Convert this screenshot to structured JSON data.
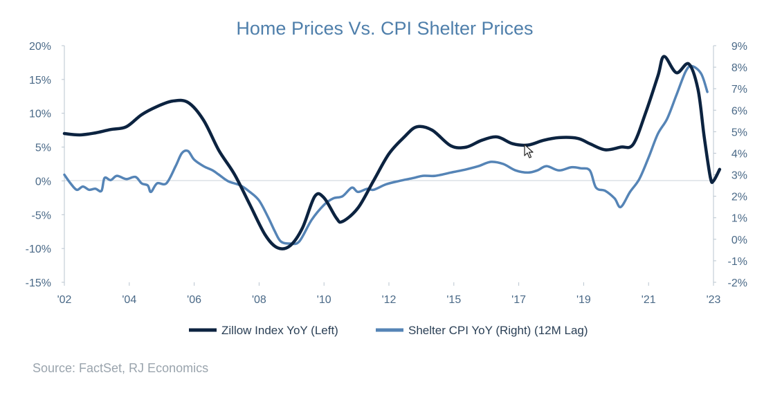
{
  "chart_data": {
    "type": "line",
    "title": "Home Prices Vs. CPI Shelter Prices",
    "source": "Source: FactSet, RJ Economics",
    "x_ticks": [
      "'02",
      "'04",
      "'06",
      "'08",
      "'10",
      "'12",
      "'15",
      "'17",
      "'19",
      "'21",
      "'23"
    ],
    "x_range": [
      2002.0,
      2023.0
    ],
    "y_left": {
      "ticks": [
        "20%",
        "15%",
        "10%",
        "5%",
        "0%",
        "-5%",
        "-10%",
        "-15%"
      ],
      "min": -15,
      "max": 20
    },
    "y_right": {
      "ticks": [
        "9%",
        "8%",
        "7%",
        "6%",
        "5%",
        "4%",
        "3%",
        "2%",
        "1%",
        "0%",
        "-1%",
        "-2%"
      ],
      "min": -2,
      "max": 9
    },
    "grid": false,
    "legend_position": "bottom",
    "series": [
      {
        "name": "Zillow Index YoY (Left)",
        "axis": "left",
        "color": "#0c2340",
        "points": [
          [
            2002.0,
            7.0
          ],
          [
            2002.5,
            6.8
          ],
          [
            2003.0,
            7.1
          ],
          [
            2003.5,
            7.6
          ],
          [
            2004.0,
            8.0
          ],
          [
            2004.5,
            9.8
          ],
          [
            2005.0,
            11.0
          ],
          [
            2005.5,
            11.8
          ],
          [
            2006.0,
            11.6
          ],
          [
            2006.5,
            9.0
          ],
          [
            2007.0,
            4.5
          ],
          [
            2007.5,
            1.0
          ],
          [
            2008.0,
            -3.5
          ],
          [
            2008.5,
            -8.0
          ],
          [
            2008.9,
            -9.9
          ],
          [
            2009.3,
            -9.6
          ],
          [
            2009.7,
            -7.0
          ],
          [
            2010.1,
            -2.3
          ],
          [
            2010.4,
            -2.5
          ],
          [
            2010.8,
            -5.5
          ],
          [
            2011.0,
            -6.0
          ],
          [
            2011.5,
            -4.0
          ],
          [
            2012.0,
            0.0
          ],
          [
            2012.5,
            4.0
          ],
          [
            2013.0,
            6.5
          ],
          [
            2013.4,
            8.0
          ],
          [
            2013.9,
            7.5
          ],
          [
            2014.5,
            5.2
          ],
          [
            2015.0,
            5.0
          ],
          [
            2015.5,
            6.0
          ],
          [
            2016.0,
            6.5
          ],
          [
            2016.5,
            5.5
          ],
          [
            2017.0,
            5.3
          ],
          [
            2017.5,
            6.0
          ],
          [
            2018.0,
            6.4
          ],
          [
            2018.6,
            6.3
          ],
          [
            2019.0,
            5.5
          ],
          [
            2019.5,
            4.6
          ],
          [
            2020.0,
            5.0
          ],
          [
            2020.4,
            5.4
          ],
          [
            2020.8,
            10.0
          ],
          [
            2021.2,
            15.5
          ],
          [
            2021.4,
            18.4
          ],
          [
            2021.8,
            16.0
          ],
          [
            2022.2,
            17.3
          ],
          [
            2022.5,
            13.5
          ],
          [
            2022.7,
            6.5
          ],
          [
            2022.9,
            0.5
          ],
          [
            2023.0,
            0.0
          ],
          [
            2023.2,
            1.7
          ]
        ]
      },
      {
        "name": "Shelter CPI YoY (Right) (12M Lag)",
        "axis": "right",
        "color": "#5584b6",
        "points": [
          [
            2002.0,
            3.0
          ],
          [
            2002.2,
            2.6
          ],
          [
            2002.4,
            2.3
          ],
          [
            2002.6,
            2.45
          ],
          [
            2002.8,
            2.3
          ],
          [
            2003.0,
            2.35
          ],
          [
            2003.2,
            2.25
          ],
          [
            2003.3,
            2.85
          ],
          [
            2003.5,
            2.75
          ],
          [
            2003.7,
            2.95
          ],
          [
            2004.0,
            2.8
          ],
          [
            2004.3,
            2.9
          ],
          [
            2004.5,
            2.6
          ],
          [
            2004.7,
            2.5
          ],
          [
            2004.8,
            2.2
          ],
          [
            2005.0,
            2.6
          ],
          [
            2005.3,
            2.6
          ],
          [
            2005.6,
            3.4
          ],
          [
            2005.8,
            4.0
          ],
          [
            2006.0,
            4.1
          ],
          [
            2006.2,
            3.7
          ],
          [
            2006.5,
            3.4
          ],
          [
            2006.8,
            3.2
          ],
          [
            2007.0,
            3.0
          ],
          [
            2007.3,
            2.7
          ],
          [
            2007.7,
            2.5
          ],
          [
            2008.0,
            2.2
          ],
          [
            2008.3,
            1.8
          ],
          [
            2008.6,
            1.0
          ],
          [
            2008.8,
            0.4
          ],
          [
            2009.0,
            -0.1
          ],
          [
            2009.3,
            -0.2
          ],
          [
            2009.6,
            -0.1
          ],
          [
            2010.0,
            0.9
          ],
          [
            2010.4,
            1.6
          ],
          [
            2010.7,
            1.9
          ],
          [
            2011.0,
            2.0
          ],
          [
            2011.3,
            2.4
          ],
          [
            2011.5,
            2.2
          ],
          [
            2011.8,
            2.35
          ],
          [
            2012.0,
            2.3
          ],
          [
            2012.4,
            2.55
          ],
          [
            2012.8,
            2.7
          ],
          [
            2013.3,
            2.85
          ],
          [
            2013.6,
            2.95
          ],
          [
            2014.0,
            2.95
          ],
          [
            2014.5,
            3.1
          ],
          [
            2015.0,
            3.25
          ],
          [
            2015.4,
            3.4
          ],
          [
            2015.8,
            3.6
          ],
          [
            2016.2,
            3.5
          ],
          [
            2016.6,
            3.2
          ],
          [
            2017.0,
            3.1
          ],
          [
            2017.3,
            3.2
          ],
          [
            2017.6,
            3.4
          ],
          [
            2018.0,
            3.2
          ],
          [
            2018.4,
            3.35
          ],
          [
            2018.7,
            3.3
          ],
          [
            2019.0,
            3.2
          ],
          [
            2019.2,
            2.4
          ],
          [
            2019.5,
            2.25
          ],
          [
            2019.8,
            1.9
          ],
          [
            2020.0,
            1.5
          ],
          [
            2020.3,
            2.2
          ],
          [
            2020.6,
            2.8
          ],
          [
            2020.9,
            3.8
          ],
          [
            2021.2,
            4.9
          ],
          [
            2021.5,
            5.6
          ],
          [
            2021.8,
            6.7
          ],
          [
            2022.1,
            7.8
          ],
          [
            2022.3,
            8.05
          ],
          [
            2022.6,
            7.7
          ],
          [
            2022.8,
            6.85
          ]
        ]
      }
    ]
  }
}
